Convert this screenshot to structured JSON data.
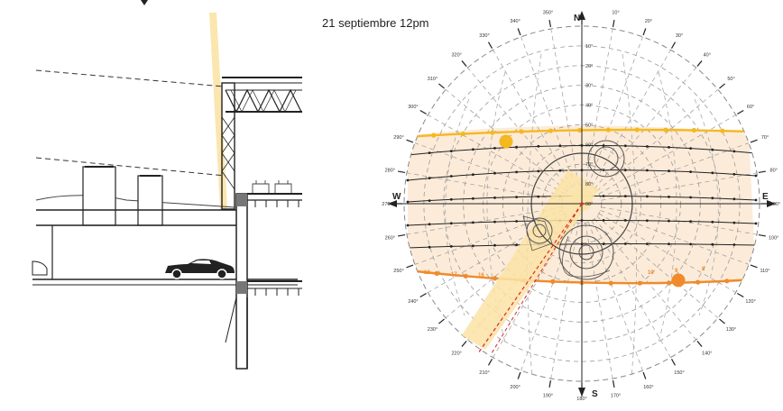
{
  "title": "21 septiembre 12pm",
  "compass": {
    "n": "N",
    "s": "S",
    "e": "E",
    "w": "W"
  },
  "azimuth_labels": [
    "10°",
    "20°",
    "30°",
    "40°",
    "50°",
    "60°",
    "70°",
    "80°",
    "90°",
    "100°",
    "110°",
    "120°",
    "130°",
    "140°",
    "150°",
    "160°",
    "170°",
    "180°",
    "190°",
    "200°",
    "210°",
    "220°",
    "230°",
    "240°",
    "250°",
    "260°",
    "270°",
    "280°",
    "290°",
    "300°",
    "310°",
    "320°",
    "330°",
    "340°",
    "350°"
  ],
  "altitude_labels": [
    "10°",
    "20°",
    "30°",
    "40°",
    "50°",
    "60°",
    "70°",
    "80°",
    "90°"
  ],
  "hour_labels_summer": [],
  "hour_labels_winter": [
    "18",
    "17",
    "16",
    "10",
    "9",
    "8"
  ],
  "colors": {
    "summer_path": "#f5b820",
    "winter_path": "#f08a2a",
    "band_fill": "#fbe7d2",
    "beam": "#fbe3a6",
    "sightline": "#d62b2b",
    "grid": "#9a9a9a"
  }
}
